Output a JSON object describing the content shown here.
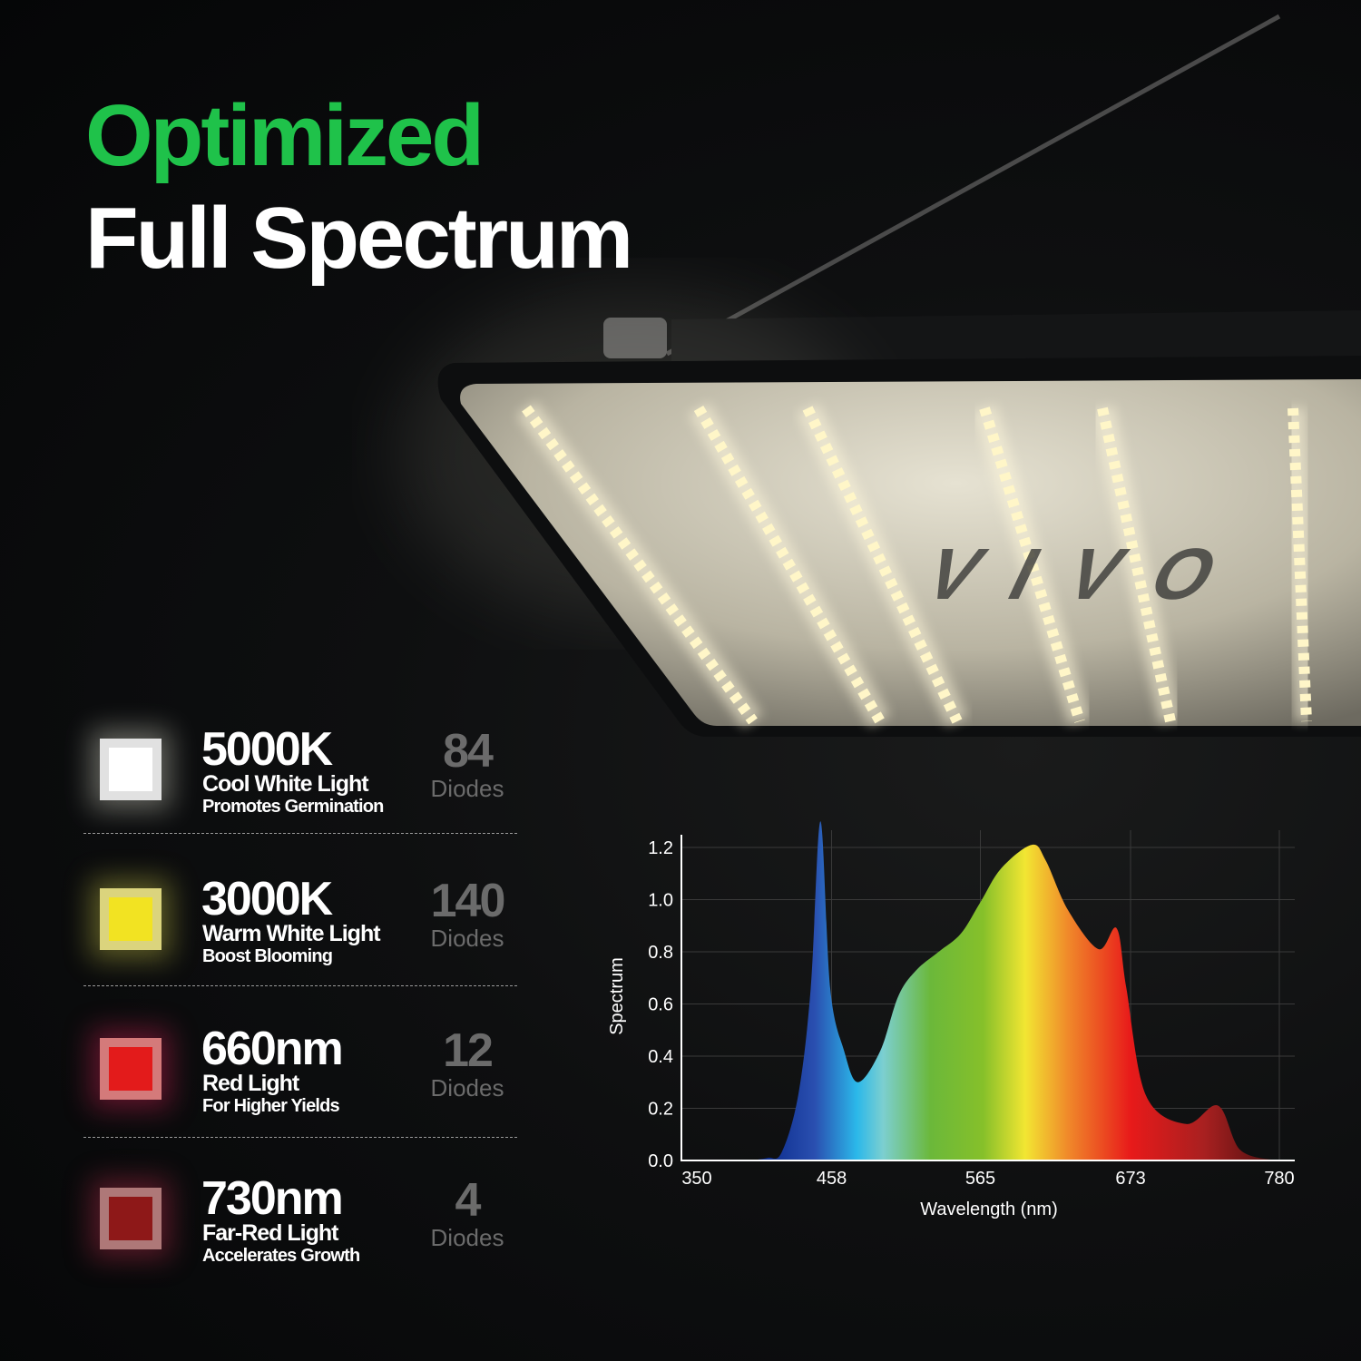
{
  "header": {
    "line1": "Optimized",
    "line2": "Full Spectrum",
    "accent_color": "#1fc24a"
  },
  "logo": "VIVO",
  "diode_types": [
    {
      "spec": "5000K",
      "name": "Cool White Light",
      "benefit": "Promotes Germination",
      "count": "84",
      "unit": "Diodes",
      "color": "#ffffff",
      "glow": "#e8e8d8"
    },
    {
      "spec": "3000K",
      "name": "Warm White Light",
      "benefit": "Boost Blooming",
      "count": "140",
      "unit": "Diodes",
      "color": "#f2e322",
      "glow": "#d8d24a"
    },
    {
      "spec": "660nm",
      "name": "Red Light",
      "benefit": "For Higher Yields",
      "count": "12",
      "unit": "Diodes",
      "color": "#e31b1b",
      "glow": "#e0245a"
    },
    {
      "spec": "730nm",
      "name": "Far-Red Light",
      "benefit": "Accelerates Growth",
      "count": "4",
      "unit": "Diodes",
      "color": "#8e1818",
      "glow": "#c8304f"
    }
  ],
  "chart_data": {
    "type": "area",
    "title": "",
    "xlabel": "Wavelength (nm)",
    "ylabel": "Spectrum",
    "x_ticks": [
      "350",
      "458",
      "565",
      "673",
      "780"
    ],
    "y_ticks": [
      "0.0",
      "0.2",
      "0.4",
      "0.6",
      "0.8",
      "1.0",
      "1.2"
    ],
    "xlim": [
      350,
      790
    ],
    "ylim": [
      0,
      1.2
    ],
    "grid": true,
    "fill": "visible-spectrum gradient",
    "series": [
      {
        "x": [
          400,
          412,
          422,
          434,
          443,
          450,
          457,
          467,
          477,
          493,
          506,
          519,
          535,
          551,
          565,
          580,
          602,
          612,
          628,
          650,
          663,
          670,
          684,
          713,
          736,
          752,
          778
        ],
        "y": [
          0,
          0.01,
          0.03,
          0.25,
          0.66,
          1.3,
          0.66,
          0.42,
          0.3,
          0.42,
          0.63,
          0.73,
          0.8,
          0.87,
          0.99,
          1.12,
          1.21,
          1.15,
          0.96,
          0.81,
          0.89,
          0.66,
          0.25,
          0.14,
          0.21,
          0.04,
          0
        ]
      }
    ]
  }
}
